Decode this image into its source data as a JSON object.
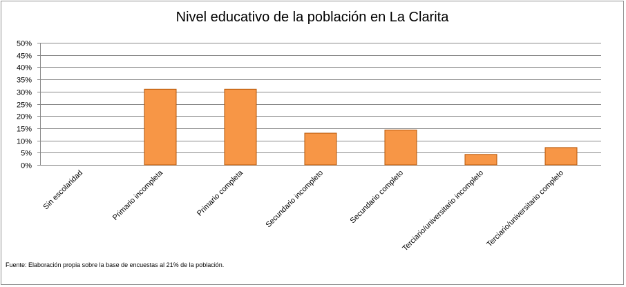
{
  "chart_data": {
    "type": "bar",
    "title": "Nivel educativo de la población en La Clarita",
    "categories": [
      "Sin escolaridad",
      "Primario incompleta",
      "Primario completa",
      "Secundario incompleto",
      "Secundario completo",
      "Terciario/universitario incompleto",
      "Terciario/universitario completo"
    ],
    "values": [
      0,
      31,
      31,
      13,
      14.3,
      4.3,
      7.1
    ],
    "ylim": [
      0,
      50
    ],
    "yticks": [
      "0%",
      "5%",
      "10%",
      "15%",
      "20%",
      "25%",
      "30%",
      "35%",
      "40%",
      "45%",
      "50%"
    ],
    "xlabel": "",
    "ylabel": "",
    "grid": true,
    "legend": "none",
    "colors": {
      "bar_fill": "#F79646",
      "bar_stroke": "#B65708",
      "grid": "#878787",
      "axis": "#878787"
    }
  },
  "note": "Fuente: Elaboración propia sobre la base de encuestas al 21%  de la población."
}
